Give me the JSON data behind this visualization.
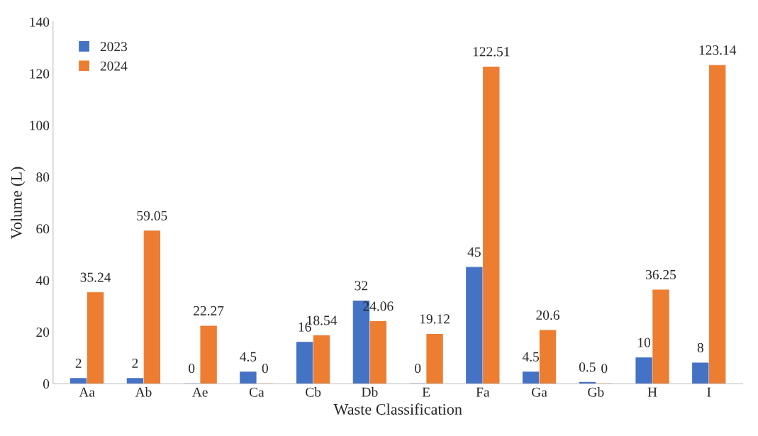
{
  "chart_data": {
    "type": "bar",
    "xlabel": "Waste Classification",
    "ylabel": "Volume (L)",
    "categories": [
      "Aa",
      "Ab",
      "Ae",
      "Ca",
      "Cb",
      "Db",
      "E",
      "Fa",
      "Ga",
      "Gb",
      "H",
      "I"
    ],
    "series": [
      {
        "name": "2023",
        "color": "#4472c4",
        "values": [
          2,
          2,
          0,
          4.5,
          16,
          32,
          0,
          45,
          4.5,
          0.5,
          10,
          8
        ]
      },
      {
        "name": "2024",
        "color": "#ed7d31",
        "values": [
          35.24,
          59.05,
          22.27,
          0,
          18.54,
          24.06,
          19.12,
          122.51,
          20.6,
          0,
          36.25,
          123.14
        ]
      }
    ],
    "ylim": [
      0,
      140
    ],
    "yticks": [
      0,
      20,
      40,
      60,
      80,
      100,
      120,
      140
    ],
    "grid": false,
    "legend": "top left",
    "data_labels": true
  }
}
